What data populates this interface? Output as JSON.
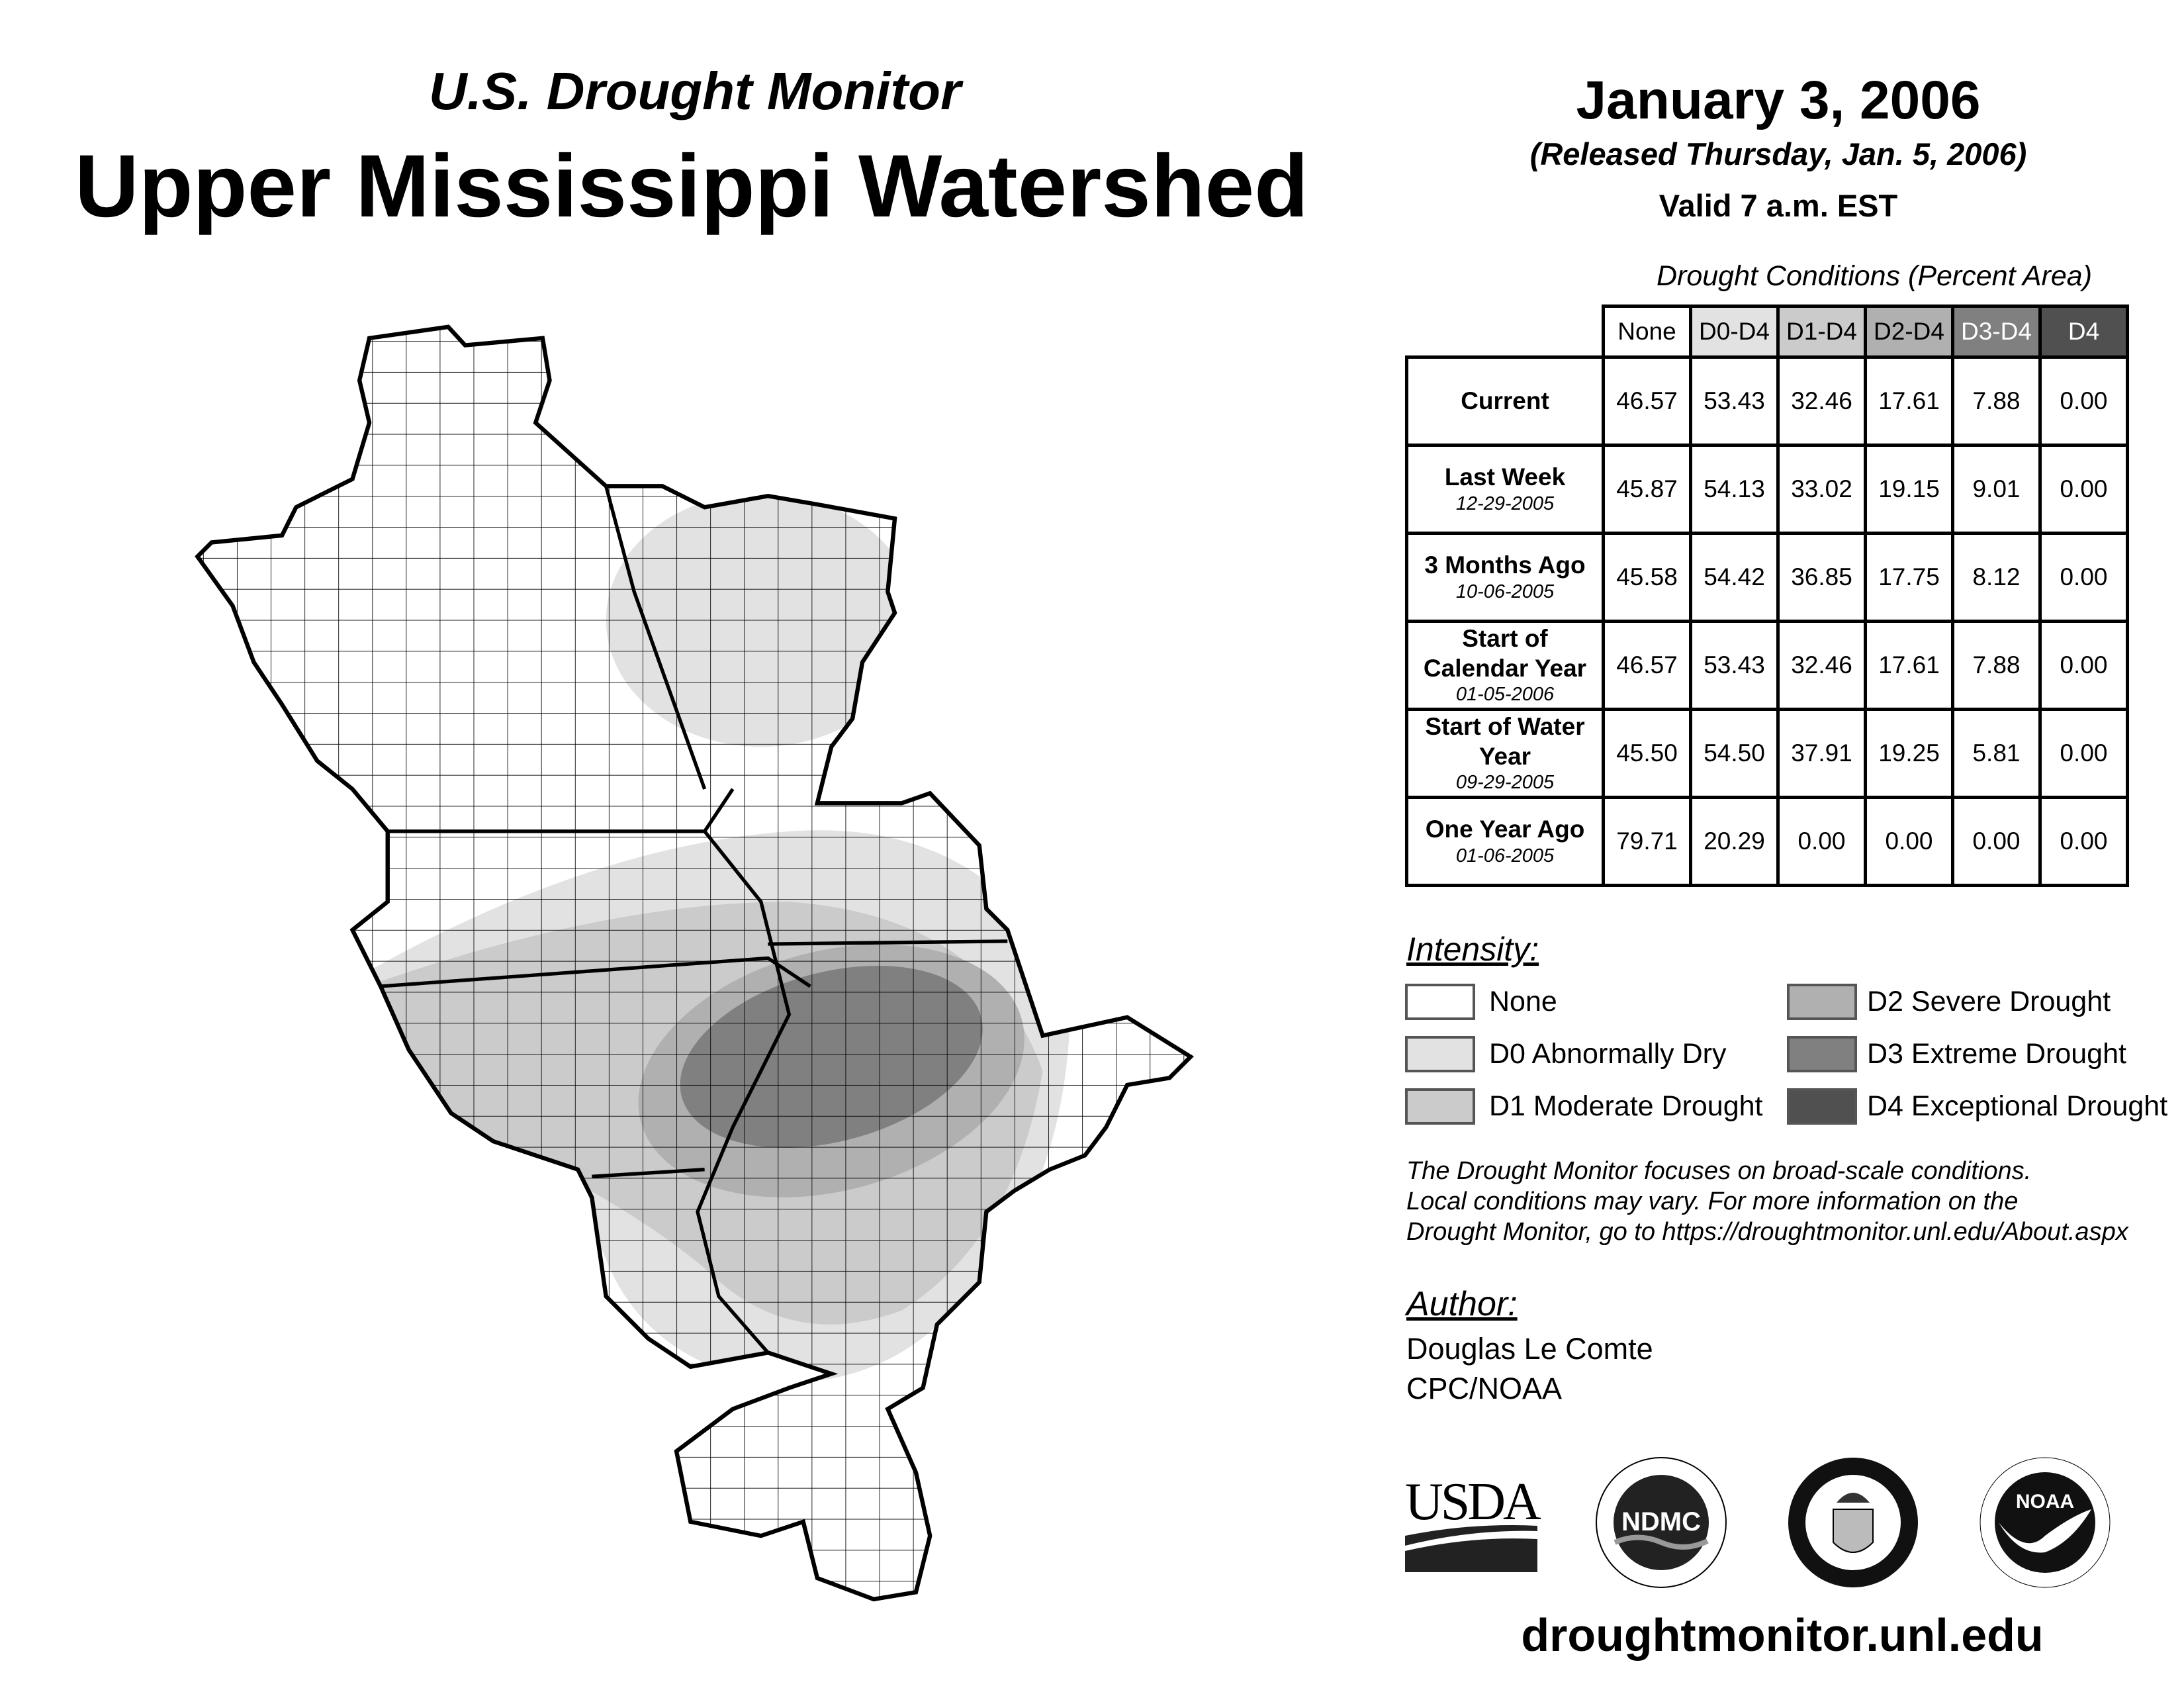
{
  "header": {
    "subtitle": "U.S. Drought Monitor",
    "title": "Upper Mississippi Watershed",
    "date": "January 3, 2006",
    "released": "(Released Thursday, Jan. 5, 2006)",
    "valid": "Valid 7 a.m. EST"
  },
  "table": {
    "caption": "Drought Conditions (Percent Area)",
    "columns": [
      "None",
      "D0-D4",
      "D1-D4",
      "D2-D4",
      "D3-D4",
      "D4"
    ],
    "rows": [
      {
        "label": "Current",
        "date": "",
        "values": [
          "46.57",
          "53.43",
          "32.46",
          "17.61",
          "7.88",
          "0.00"
        ]
      },
      {
        "label": "Last Week",
        "date": "12-29-2005",
        "values": [
          "45.87",
          "54.13",
          "33.02",
          "19.15",
          "9.01",
          "0.00"
        ]
      },
      {
        "label": "3 Months Ago",
        "date": "10-06-2005",
        "values": [
          "45.58",
          "54.42",
          "36.85",
          "17.75",
          "8.12",
          "0.00"
        ]
      },
      {
        "label": "Start of Calendar Year",
        "date": "01-05-2006",
        "values": [
          "46.57",
          "53.43",
          "32.46",
          "17.61",
          "7.88",
          "0.00"
        ]
      },
      {
        "label": "Start of Water Year",
        "date": "09-29-2005",
        "values": [
          "45.50",
          "54.50",
          "37.91",
          "19.25",
          "5.81",
          "0.00"
        ]
      },
      {
        "label": "One Year Ago",
        "date": "01-06-2005",
        "values": [
          "79.71",
          "20.29",
          "0.00",
          "0.00",
          "0.00",
          "0.00"
        ]
      }
    ]
  },
  "legend": {
    "title": "Intensity:",
    "items": [
      {
        "label": "None",
        "color": "#ffffff"
      },
      {
        "label": "D0 Abnormally Dry",
        "color": "#e2e2e2"
      },
      {
        "label": "D1 Moderate Drought",
        "color": "#cbcbcb"
      },
      {
        "label": "D2 Severe Drought",
        "color": "#b0b0b0"
      },
      {
        "label": "D3 Extreme Drought",
        "color": "#808080"
      },
      {
        "label": "D4 Exceptional Drought",
        "color": "#505050"
      }
    ]
  },
  "disclaimer": [
    "The Drought Monitor focuses on broad-scale conditions.",
    "Local conditions may vary. For more information on the",
    "Drought Monitor, go to https://droughtmonitor.unl.edu/About.aspx"
  ],
  "author": {
    "heading": "Author:",
    "name": "Douglas Le Comte",
    "org": "CPC/NOAA"
  },
  "logos": [
    "USDA",
    "NDMC",
    "Department of Commerce",
    "NOAA"
  ],
  "url": "droughtmonitor.unl.edu"
}
